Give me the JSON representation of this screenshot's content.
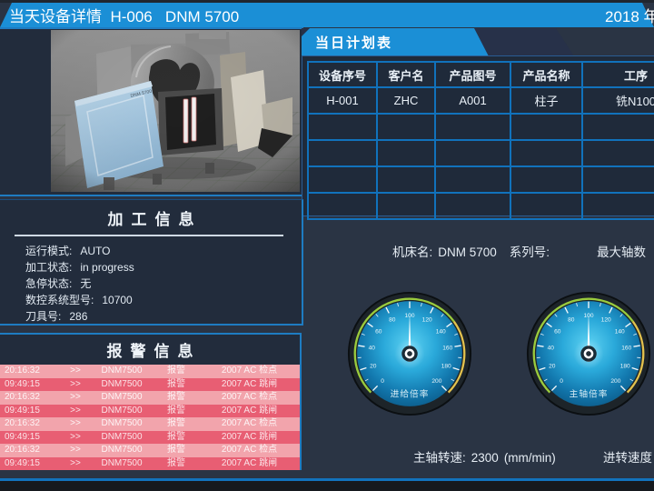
{
  "header": {
    "title": "当天设备详情  H-006   DNM 5700",
    "date": "2018 年"
  },
  "plan": {
    "tab_title": "当日计划表",
    "columns": [
      "设备序号",
      "客户名",
      "产品图号",
      "产品名称",
      "工序"
    ],
    "rows": [
      [
        "H-001",
        "ZHC",
        "A001",
        "柱子",
        "铣N100"
      ],
      [
        "",
        "",
        "",
        "",
        ""
      ],
      [
        "",
        "",
        "",
        "",
        ""
      ],
      [
        "",
        "",
        "",
        "",
        ""
      ],
      [
        "",
        "",
        "",
        "",
        ""
      ]
    ]
  },
  "machine_line": {
    "name_label": "机床名:",
    "name_value": "DNM 5700",
    "serial_label": "系列号:",
    "serial_value": "",
    "axes_label": "最大轴数"
  },
  "machine_image": {
    "model_text": "DNM 5700"
  },
  "processing": {
    "title": "加工信息",
    "fields": [
      {
        "label": "运行模式:",
        "value": "AUTO"
      },
      {
        "label": "加工状态:",
        "value": "in progress"
      },
      {
        "label": "急停状态:",
        "value": "无"
      },
      {
        "label": "数控系统型号:",
        "value": "10700"
      },
      {
        "label": "刀具号:",
        "value": "286"
      }
    ]
  },
  "alarms": {
    "title": "报警信息",
    "rows": [
      {
        "time": "20:16:32",
        "sep": ">>",
        "device": "DNM7500",
        "type": "报警",
        "message": "2007  AC 检点"
      },
      {
        "time": "09:49:15",
        "sep": ">>",
        "device": "DNM7500",
        "type": "报警",
        "message": "2007  AC 跳闸"
      },
      {
        "time": "20:16:32",
        "sep": ">>",
        "device": "DNM7500",
        "type": "报警",
        "message": "2007  AC 检点"
      },
      {
        "time": "09:49:15",
        "sep": ">>",
        "device": "DNM7500",
        "type": "报警",
        "message": "2007  AC 跳闸"
      },
      {
        "time": "20:16:32",
        "sep": ">>",
        "device": "DNM7500",
        "type": "报警",
        "message": "2007  AC 检点"
      },
      {
        "time": "09:49:15",
        "sep": ">>",
        "device": "DNM7500",
        "type": "报警",
        "message": "2007  AC 跳闸"
      },
      {
        "time": "20:16:32",
        "sep": ">>",
        "device": "DNM7500",
        "type": "报警",
        "message": "2007  AC 检点"
      },
      {
        "time": "09:49:15",
        "sep": ">>",
        "device": "DNM7500",
        "type": "报警",
        "message": "2007  AC 跳闸"
      }
    ]
  },
  "gauges": [
    {
      "label": "进给倍率",
      "min": 0,
      "max": 200,
      "value": 100,
      "tick_step": 10,
      "label_step": 20
    },
    {
      "label": "主轴倍率",
      "min": 0,
      "max": 200,
      "value": 100,
      "tick_step": 10,
      "label_step": 20
    }
  ],
  "bottom": {
    "spindle_label": "主轴转速:",
    "spindle_value": "2300",
    "spindle_unit": "(mm/min)",
    "feed_label": "进转速度"
  },
  "colors": {
    "header_blue": "#1b8fd6",
    "panel_border": "#1e7cc2",
    "grid_blue": "#1172bc",
    "alarm_light": "#f2a4ac",
    "alarm_dark": "#e85e73",
    "gauge_green": "#9acb3d",
    "gauge_yellow": "#e3c24e"
  }
}
